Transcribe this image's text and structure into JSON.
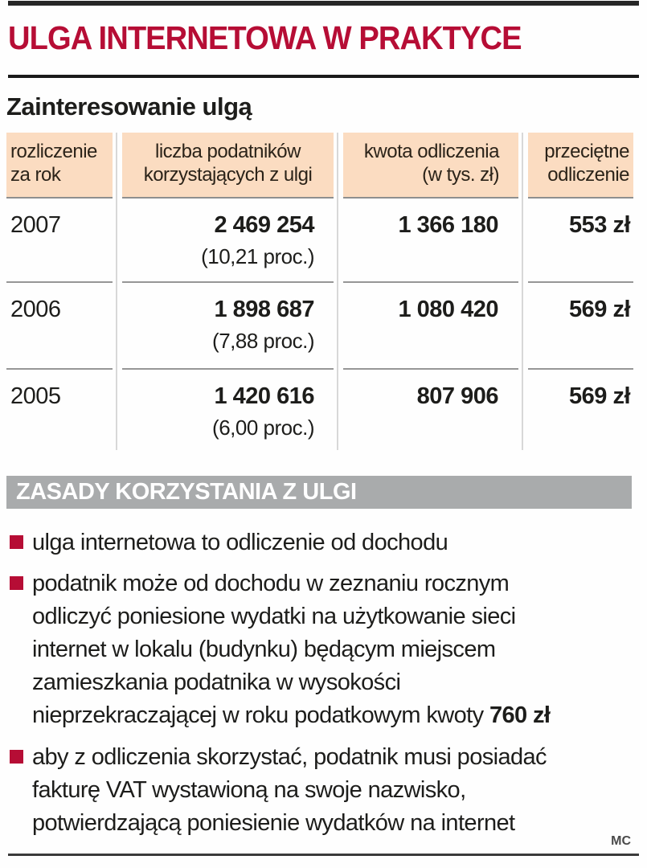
{
  "header": {
    "title": "ULGA INTERNETOWA W PRAKTYCE",
    "accent_color": "#b60d35"
  },
  "interest_section": {
    "heading": "Zainteresowanie ulgą",
    "table": {
      "columns": [
        {
          "label_lines": [
            "rozliczenie",
            "za rok"
          ]
        },
        {
          "label_lines": [
            "liczba podatników",
            "korzystających z ulgi"
          ]
        },
        {
          "label_lines": [
            "kwota odliczenia",
            "(w tys. zł)"
          ]
        },
        {
          "label_lines": [
            "przeciętne",
            "odliczenie"
          ]
        }
      ],
      "rows": [
        {
          "year": "2007",
          "taxpayers": "2 469 254",
          "taxpayers_pct": "(10,21 proc.)",
          "amount": "1 366 180",
          "average": "553 zł"
        },
        {
          "year": "2006",
          "taxpayers": "1 898 687",
          "taxpayers_pct": "(7,88 proc.)",
          "amount": "1 080 420",
          "average": "569 zł"
        },
        {
          "year": "2005",
          "taxpayers": "1 420 616",
          "taxpayers_pct": "(6,00 proc.)",
          "amount": "807 906",
          "average": "569 zł"
        }
      ],
      "header_bg_color": "#fbdcc1"
    }
  },
  "rules_section": {
    "heading": "ZASADY KORZYSTANIA Z ULGI",
    "bar_color": "#a9abac",
    "bullets": [
      {
        "lines": [
          "ulga internetowa to odliczenie od dochodu"
        ],
        "bold_suffix": ""
      },
      {
        "lines": [
          "podatnik może od dochodu w zeznaniu rocznym",
          "odliczyć poniesione wydatki na użytkowanie sieci",
          "internet w lokalu (budynku) będącym miejscem",
          "zamieszkania podatnika w wysokości",
          "nieprzekraczającej w roku podatkowym kwoty "
        ],
        "bold_suffix": "760 zł"
      },
      {
        "lines": [
          "aby z odliczenia skorzystać, podatnik musi posiadać",
          "fakturę VAT wystawioną na swoje nazwisko,",
          "potwierdzającą poniesienie wydatków na internet"
        ],
        "bold_suffix": ""
      }
    ]
  },
  "footer": {
    "credit": "MC"
  },
  "chart_data": {
    "type": "table",
    "title": "Zainteresowanie ulgą",
    "columns": [
      "rozliczenie za rok",
      "liczba podatników korzystających z ulgi",
      "kwota odliczenia (w tys. zł)",
      "przeciętne odliczenie"
    ],
    "rows": [
      [
        2007,
        2469254,
        "10,21 proc.",
        1366180,
        "553 zł"
      ],
      [
        2006,
        1898687,
        "7,88 proc.",
        1080420,
        "569 zł"
      ],
      [
        2005,
        1420616,
        "6,00 proc.",
        807906,
        "569 zł"
      ]
    ]
  }
}
